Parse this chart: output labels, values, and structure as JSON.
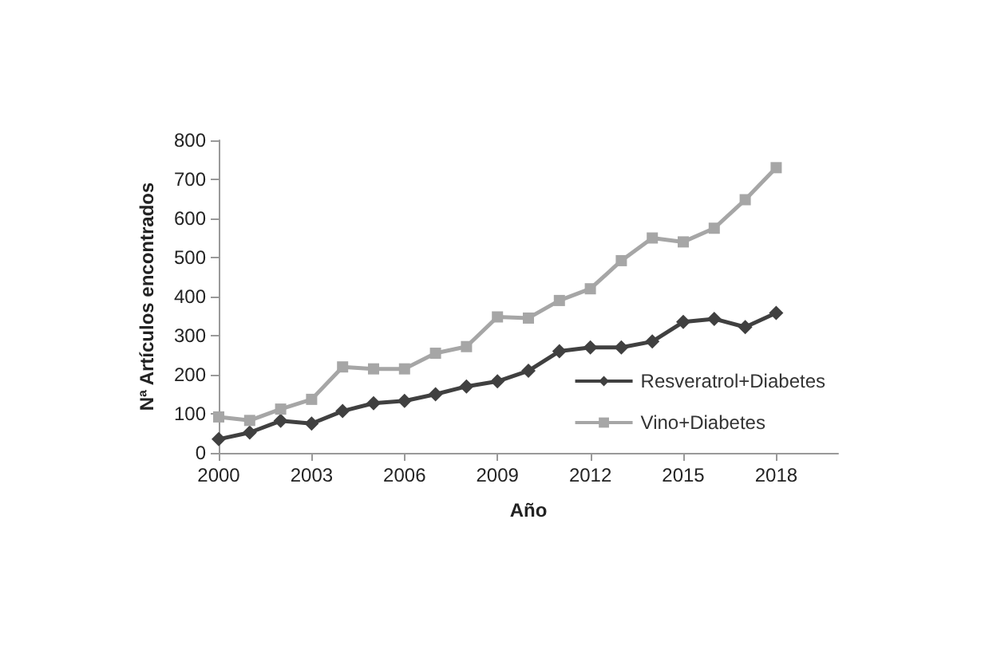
{
  "chart_data": {
    "type": "line",
    "xlabel": "Año",
    "ylabel": "Nª Artículos encontrados",
    "x": [
      2000,
      2001,
      2002,
      2003,
      2004,
      2005,
      2006,
      2007,
      2008,
      2009,
      2010,
      2011,
      2012,
      2013,
      2014,
      2015,
      2016,
      2017,
      2018
    ],
    "series": [
      {
        "name": "Resveratrol+Diabetes",
        "color": "#404040",
        "marker": "diamond",
        "values": [
          35,
          52,
          82,
          75,
          107,
          127,
          133,
          150,
          170,
          183,
          210,
          260,
          270,
          270,
          285,
          335,
          343,
          322,
          358
        ]
      },
      {
        "name": "Vino+Diabetes",
        "color": "#a6a6a6",
        "marker": "square",
        "values": [
          92,
          83,
          112,
          137,
          220,
          215,
          215,
          255,
          272,
          348,
          345,
          390,
          420,
          492,
          550,
          540,
          575,
          648,
          730
        ]
      }
    ],
    "xlim": [
      2000,
      2020
    ],
    "xticks": [
      2000,
      2003,
      2006,
      2009,
      2012,
      2015,
      2018
    ],
    "ylim": [
      0,
      800
    ],
    "yticks": [
      0,
      100,
      200,
      300,
      400,
      500,
      600,
      700,
      800
    ],
    "grid": false,
    "legend": "right",
    "line_style": "solid"
  }
}
